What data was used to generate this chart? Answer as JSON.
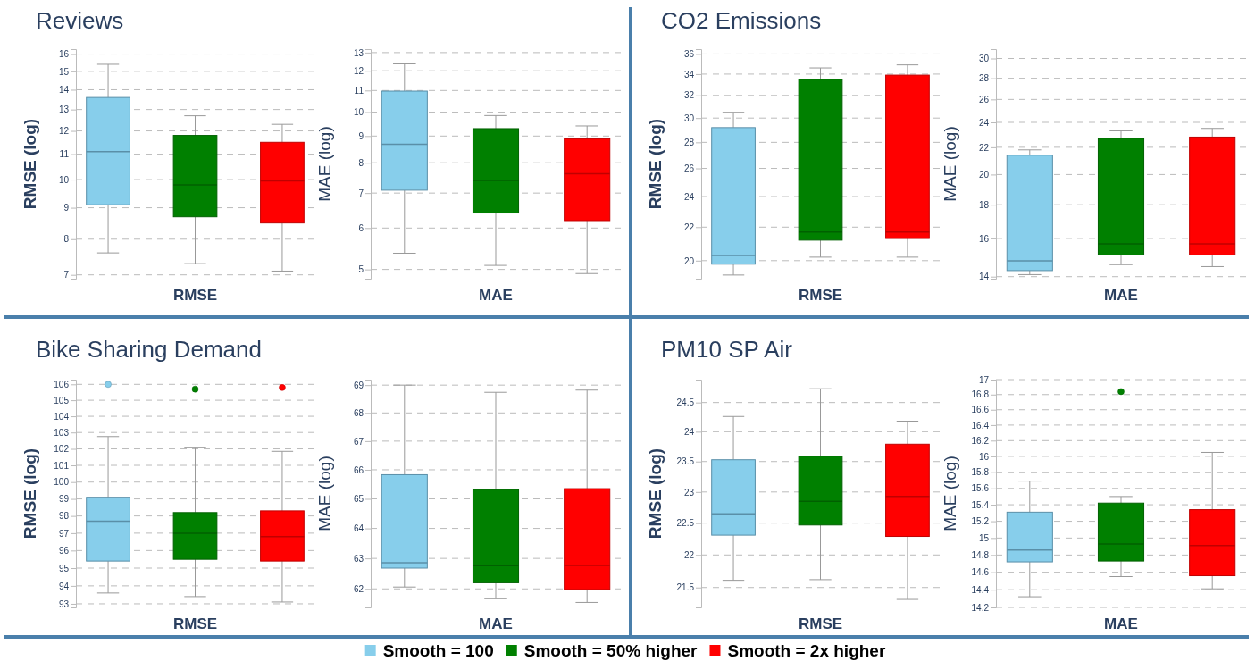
{
  "chart_data": [
    {
      "type": "box",
      "title": "Reviews",
      "xlabel": "RMSE",
      "ylabel": "RMSE (log)",
      "categories": [
        null
      ],
      "log": true,
      "grid": "y",
      "tick_labels": "y",
      "legend": "bottom",
      "ylim": [
        6.9,
        16.3
      ],
      "yticks": [
        7,
        8,
        9,
        10,
        11,
        12,
        13,
        14,
        15,
        16
      ],
      "series": [
        {
          "name": "Smooth = 100",
          "color": "#87ceeb",
          "boxes": [
            {
              "low": 7.6,
              "q1": 9.1,
              "median": 11.1,
              "q3": 13.6,
              "high": 15.4
            }
          ]
        },
        {
          "name": "Smooth = 50% higher",
          "color": "#008000",
          "boxes": [
            {
              "low": 7.3,
              "q1": 8.7,
              "median": 9.8,
              "q3": 11.8,
              "high": 12.7
            }
          ]
        },
        {
          "name": "Smooth = 2x higher",
          "color": "#ff0000",
          "boxes": [
            {
              "low": 7.1,
              "q1": 8.5,
              "median": 9.95,
              "q3": 11.5,
              "high": 12.3
            }
          ]
        }
      ]
    },
    {
      "type": "box",
      "xlabel": "MAE",
      "ylabel": "MAE (log)",
      "categories": [
        null
      ],
      "log": true,
      "grid": "y",
      "tick_labels": "y",
      "ylim": [
        4.8,
        13.2
      ],
      "yticks": [
        5,
        6,
        7,
        8,
        9,
        10,
        11,
        12,
        13
      ],
      "series": [
        {
          "color": "#87ceeb",
          "boxes": [
            {
              "low": 5.37,
              "q1": 7.09,
              "median": 8.68,
              "q3": 10.97,
              "high": 12.37
            }
          ]
        },
        {
          "color": "#008000",
          "boxes": [
            {
              "low": 5.09,
              "q1": 6.41,
              "median": 7.4,
              "q3": 9.3,
              "high": 9.85
            }
          ]
        },
        {
          "color": "#ff0000",
          "boxes": [
            {
              "low": 4.91,
              "q1": 6.2,
              "median": 7.62,
              "q3": 8.89,
              "high": 9.41
            }
          ]
        }
      ]
    },
    {
      "type": "box",
      "title": "CO2 Emissions",
      "xlabel": "RMSE",
      "ylabel": "RMSE (log)",
      "categories": [
        null
      ],
      "log": true,
      "grid": "y",
      "tick_labels": "y",
      "ylim": [
        19,
        36.5
      ],
      "yticks": [
        20,
        22,
        24,
        26,
        28,
        30,
        32,
        34,
        36
      ],
      "series": [
        {
          "color": "#87ceeb",
          "boxes": [
            {
              "low": 19.2,
              "q1": 19.8,
              "median": 20.3,
              "q3": 29.2,
              "high": 30.5
            }
          ]
        },
        {
          "color": "#008000",
          "boxes": [
            {
              "low": 20.2,
              "q1": 21.2,
              "median": 21.7,
              "q3": 33.5,
              "high": 34.6
            }
          ]
        },
        {
          "color": "#ff0000",
          "boxes": [
            {
              "low": 20.2,
              "q1": 21.3,
              "median": 21.7,
              "q3": 33.9,
              "high": 34.9
            }
          ]
        }
      ]
    },
    {
      "type": "box",
      "xlabel": "MAE",
      "ylabel": "MAE (log)",
      "categories": [
        null
      ],
      "log": true,
      "grid": "y",
      "tick_labels": "y",
      "ylim": [
        13.9,
        31
      ],
      "yticks": [
        14,
        16,
        18,
        20,
        22,
        24,
        26,
        28,
        30
      ],
      "series": [
        {
          "color": "#87ceeb",
          "boxes": [
            {
              "low": 14.1,
              "q1": 14.3,
              "median": 14.8,
              "q3": 21.4,
              "high": 21.8
            }
          ]
        },
        {
          "color": "#008000",
          "boxes": [
            {
              "low": 14.6,
              "q1": 15.1,
              "median": 15.7,
              "q3": 22.7,
              "high": 23.3
            }
          ]
        },
        {
          "color": "#ff0000",
          "boxes": [
            {
              "low": 14.5,
              "q1": 15.1,
              "median": 15.7,
              "q3": 22.8,
              "high": 23.5
            }
          ]
        }
      ]
    },
    {
      "type": "box",
      "title": "Bike Sharing Demand",
      "xlabel": "RMSE",
      "ylabel": "RMSE (log)",
      "categories": [
        null
      ],
      "log": true,
      "grid": "y",
      "tick_labels": "y",
      "ylim": [
        92.8,
        106.3
      ],
      "yticks": [
        93,
        94,
        95,
        96,
        97,
        98,
        99,
        100,
        101,
        102,
        103,
        104,
        105,
        106
      ],
      "series": [
        {
          "color": "#87ceeb",
          "boxes": [
            {
              "low": 93.6,
              "q1": 95.4,
              "median": 97.7,
              "q3": 99.1,
              "high": 102.75,
              "outliers": [
                106.0
              ]
            }
          ]
        },
        {
          "color": "#008000",
          "boxes": [
            {
              "low": 93.4,
              "q1": 95.5,
              "median": 97.0,
              "q3": 98.2,
              "high": 102.1,
              "outliers": [
                105.7
              ]
            }
          ]
        },
        {
          "color": "#ff0000",
          "boxes": [
            {
              "low": 93.1,
              "q1": 95.4,
              "median": 96.8,
              "q3": 98.3,
              "high": 101.85,
              "outliers": [
                105.8
              ]
            }
          ]
        }
      ]
    },
    {
      "type": "box",
      "xlabel": "MAE",
      "ylabel": "MAE (log)",
      "categories": [
        null
      ],
      "log": true,
      "grid": "y",
      "tick_labels": "y",
      "ylim": [
        61.4,
        69.2
      ],
      "yticks": [
        62,
        63,
        64,
        65,
        66,
        67,
        68,
        69
      ],
      "series": [
        {
          "color": "#87ceeb",
          "boxes": [
            {
              "low": 62.06,
              "q1": 62.68,
              "median": 62.86,
              "q3": 65.83,
              "high": 69.0
            }
          ]
        },
        {
          "color": "#008000",
          "boxes": [
            {
              "low": 61.68,
              "q1": 62.2,
              "median": 62.76,
              "q3": 65.32,
              "high": 68.74
            }
          ]
        },
        {
          "color": "#ff0000",
          "boxes": [
            {
              "low": 61.56,
              "q1": 61.98,
              "median": 62.77,
              "q3": 65.35,
              "high": 68.82
            }
          ]
        }
      ]
    },
    {
      "type": "box",
      "title": "PM10 SP Air",
      "xlabel": "RMSE",
      "ylabel": "RMSE (log)",
      "categories": [
        null
      ],
      "log": true,
      "grid": "y",
      "tick_labels": "y",
      "ylim": [
        21.2,
        24.9
      ],
      "yticks": [
        21.5,
        22,
        22.5,
        23,
        23.5,
        24,
        24.5
      ],
      "series": [
        {
          "color": "#87ceeb",
          "boxes": [
            {
              "low": 21.61,
              "q1": 22.31,
              "median": 22.65,
              "q3": 23.53,
              "high": 24.26
            }
          ]
        },
        {
          "color": "#008000",
          "boxes": [
            {
              "low": 21.62,
              "q1": 22.47,
              "median": 22.85,
              "q3": 23.59,
              "high": 24.74
            }
          ]
        },
        {
          "color": "#ff0000",
          "boxes": [
            {
              "low": 21.32,
              "q1": 22.29,
              "median": 22.93,
              "q3": 23.79,
              "high": 24.18
            }
          ]
        }
      ]
    },
    {
      "type": "box",
      "xlabel": "MAE",
      "ylabel": "MAE (log)",
      "categories": [
        null
      ],
      "log": true,
      "grid": "y",
      "tick_labels": "y",
      "ylim": [
        14.2,
        17
      ],
      "yticks": [
        14.2,
        14.4,
        14.6,
        14.8,
        15,
        15.2,
        15.4,
        15.6,
        15.8,
        16,
        16.2,
        16.4,
        16.6,
        16.8,
        17
      ],
      "series": [
        {
          "color": "#87ceeb",
          "boxes": [
            {
              "low": 14.32,
              "q1": 14.72,
              "median": 14.86,
              "q3": 15.31,
              "high": 15.69
            }
          ]
        },
        {
          "color": "#008000",
          "boxes": [
            {
              "low": 14.55,
              "q1": 14.73,
              "median": 14.93,
              "q3": 15.42,
              "high": 15.5,
              "outliers": [
                16.84
              ]
            }
          ]
        },
        {
          "color": "#ff0000",
          "boxes": [
            {
              "low": 14.41,
              "q1": 14.56,
              "median": 14.91,
              "q3": 15.34,
              "high": 16.05
            }
          ]
        }
      ]
    }
  ]
}
